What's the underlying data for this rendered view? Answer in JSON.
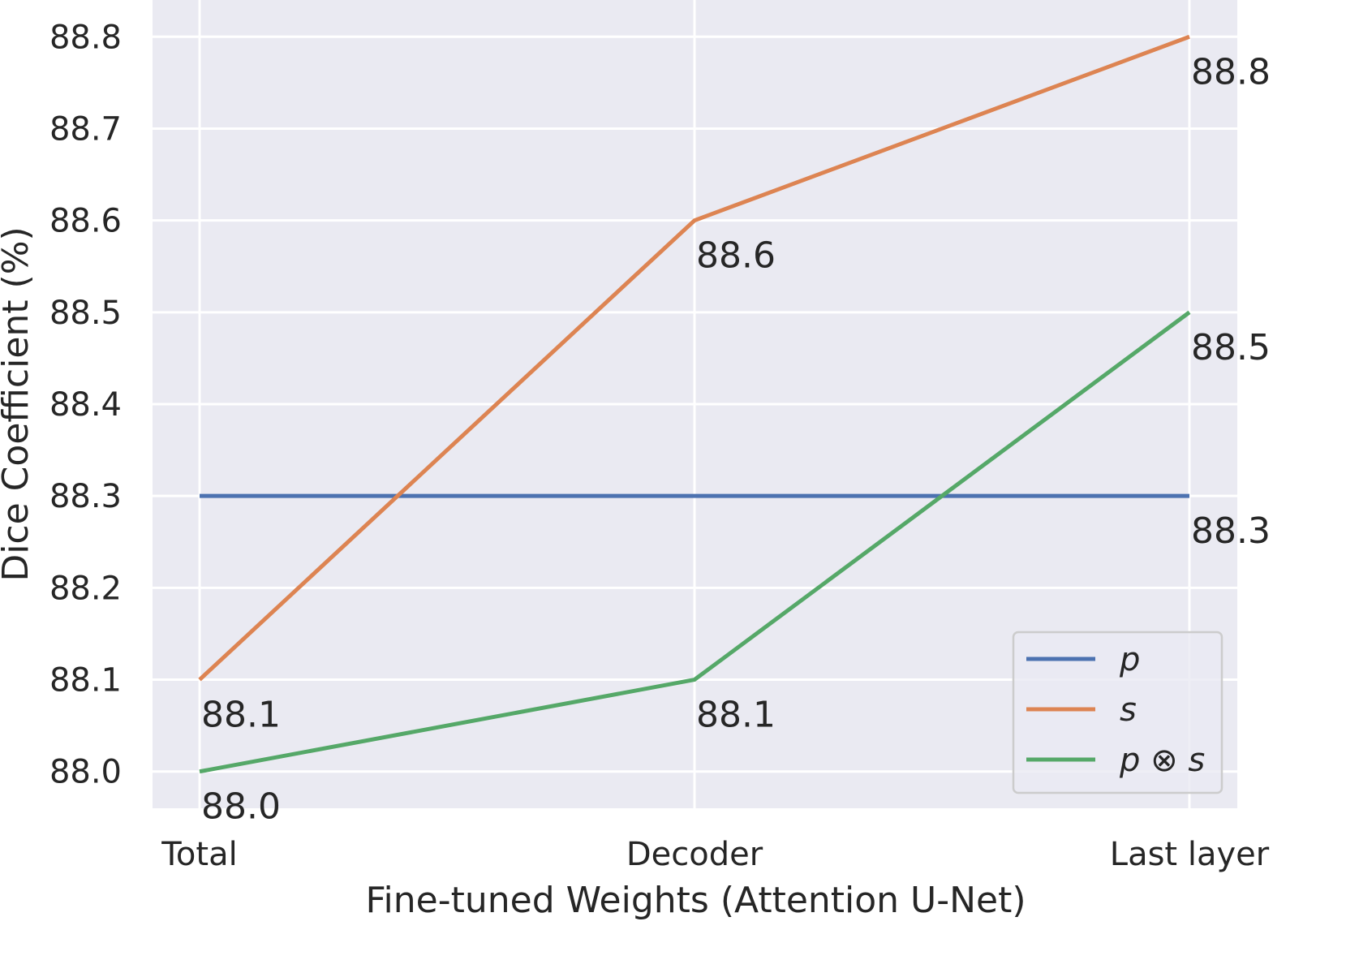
{
  "chart_data": {
    "type": "line",
    "title": "",
    "xlabel": "Fine-tuned Weights (Attention U-Net)",
    "ylabel": "Dice Coefficient (%)",
    "categories": [
      "Total",
      "Decoder",
      "Last layer"
    ],
    "yticks": [
      "88.0",
      "88.1",
      "88.2",
      "88.3",
      "88.4",
      "88.5",
      "88.6",
      "88.7",
      "88.8"
    ],
    "ylim": [
      87.96,
      88.84
    ],
    "grid": true,
    "legend_position": "bottom-right",
    "series": [
      {
        "name": "p",
        "color": "#4c72b0",
        "values": [
          88.3,
          88.3,
          88.3
        ],
        "labels": [
          "",
          "",
          "88.3"
        ]
      },
      {
        "name": "s",
        "color": "#dd8452",
        "values": [
          88.1,
          88.6,
          88.8
        ],
        "labels": [
          "88.1",
          "88.6",
          "88.8"
        ]
      },
      {
        "name": "p ⊗ s",
        "color": "#55a868",
        "values": [
          88.0,
          88.1,
          88.5
        ],
        "labels": [
          "88.0",
          "88.1",
          "88.5"
        ]
      }
    ],
    "colors": {
      "plot_background": "#eaeaf2",
      "grid": "#ffffff",
      "text": "#262626"
    }
  }
}
